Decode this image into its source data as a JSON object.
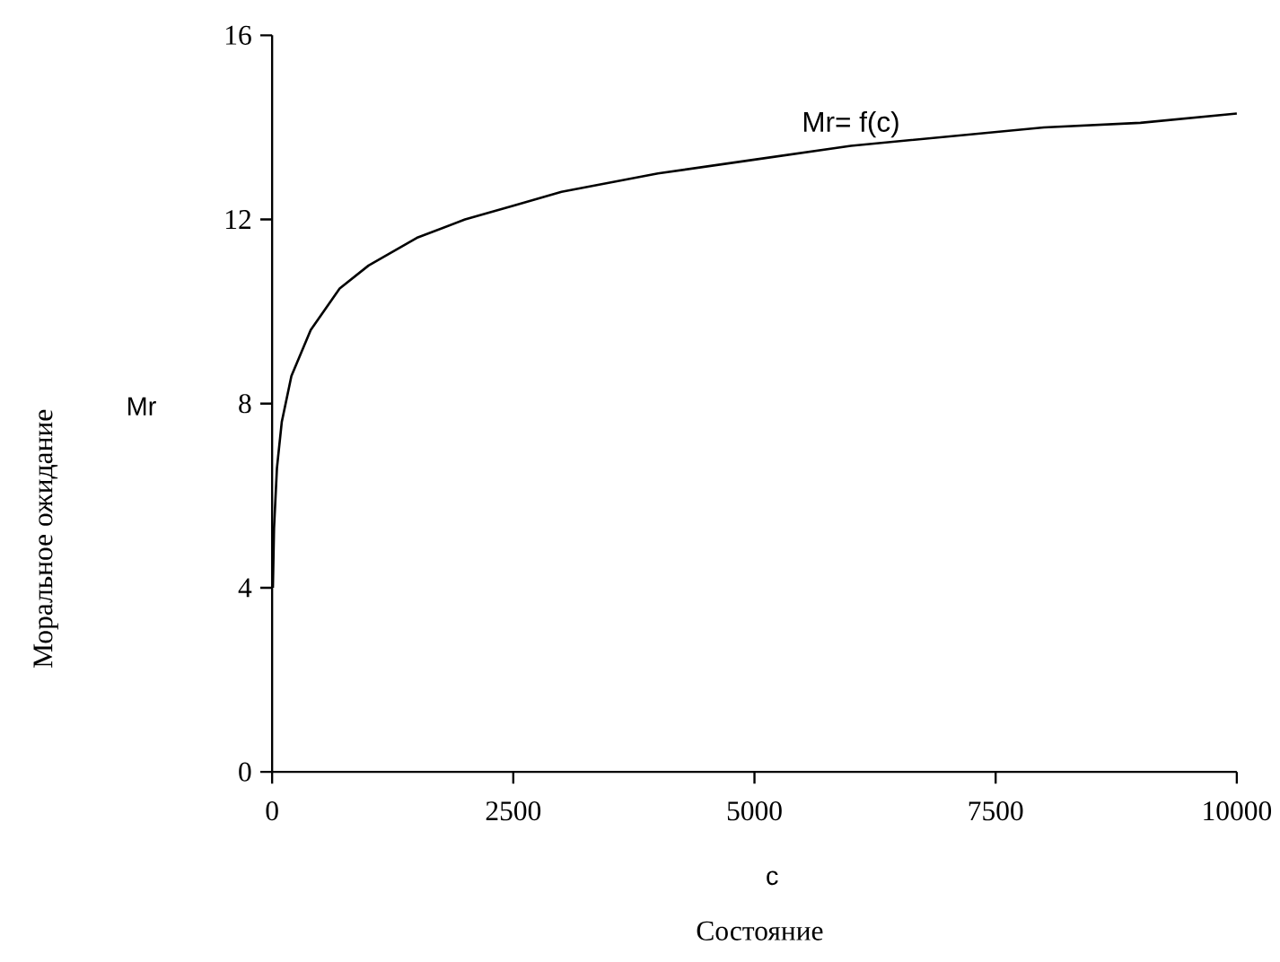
{
  "chart_data": {
    "type": "line",
    "xlabel": "c",
    "ylabel": "Mr",
    "annotations": [
      "Моральное ожидание",
      "Состояние"
    ],
    "x": [
      8,
      20,
      50,
      100,
      200,
      400,
      700,
      1000,
      1500,
      2000,
      2500,
      3000,
      4000,
      5000,
      6000,
      7000,
      8000,
      9000,
      10000
    ],
    "series": [
      {
        "name": "Mr= f(c)",
        "color": "#000000",
        "values": [
          4,
          5.3,
          6.6,
          7.6,
          8.6,
          9.6,
          10.5,
          11,
          11.6,
          12,
          12.3,
          12.6,
          13,
          13.3,
          13.6,
          13.8,
          14,
          14.1,
          14.3
        ]
      }
    ],
    "xlim": [
      0,
      10000
    ],
    "ylim": [
      0,
      16
    ],
    "xticks": [
      0,
      2500,
      5000,
      7500,
      10000
    ],
    "yticks": [
      0,
      4,
      8,
      12,
      16
    ],
    "grid": false,
    "legend": false,
    "marker": "none",
    "line_style": "solid"
  }
}
